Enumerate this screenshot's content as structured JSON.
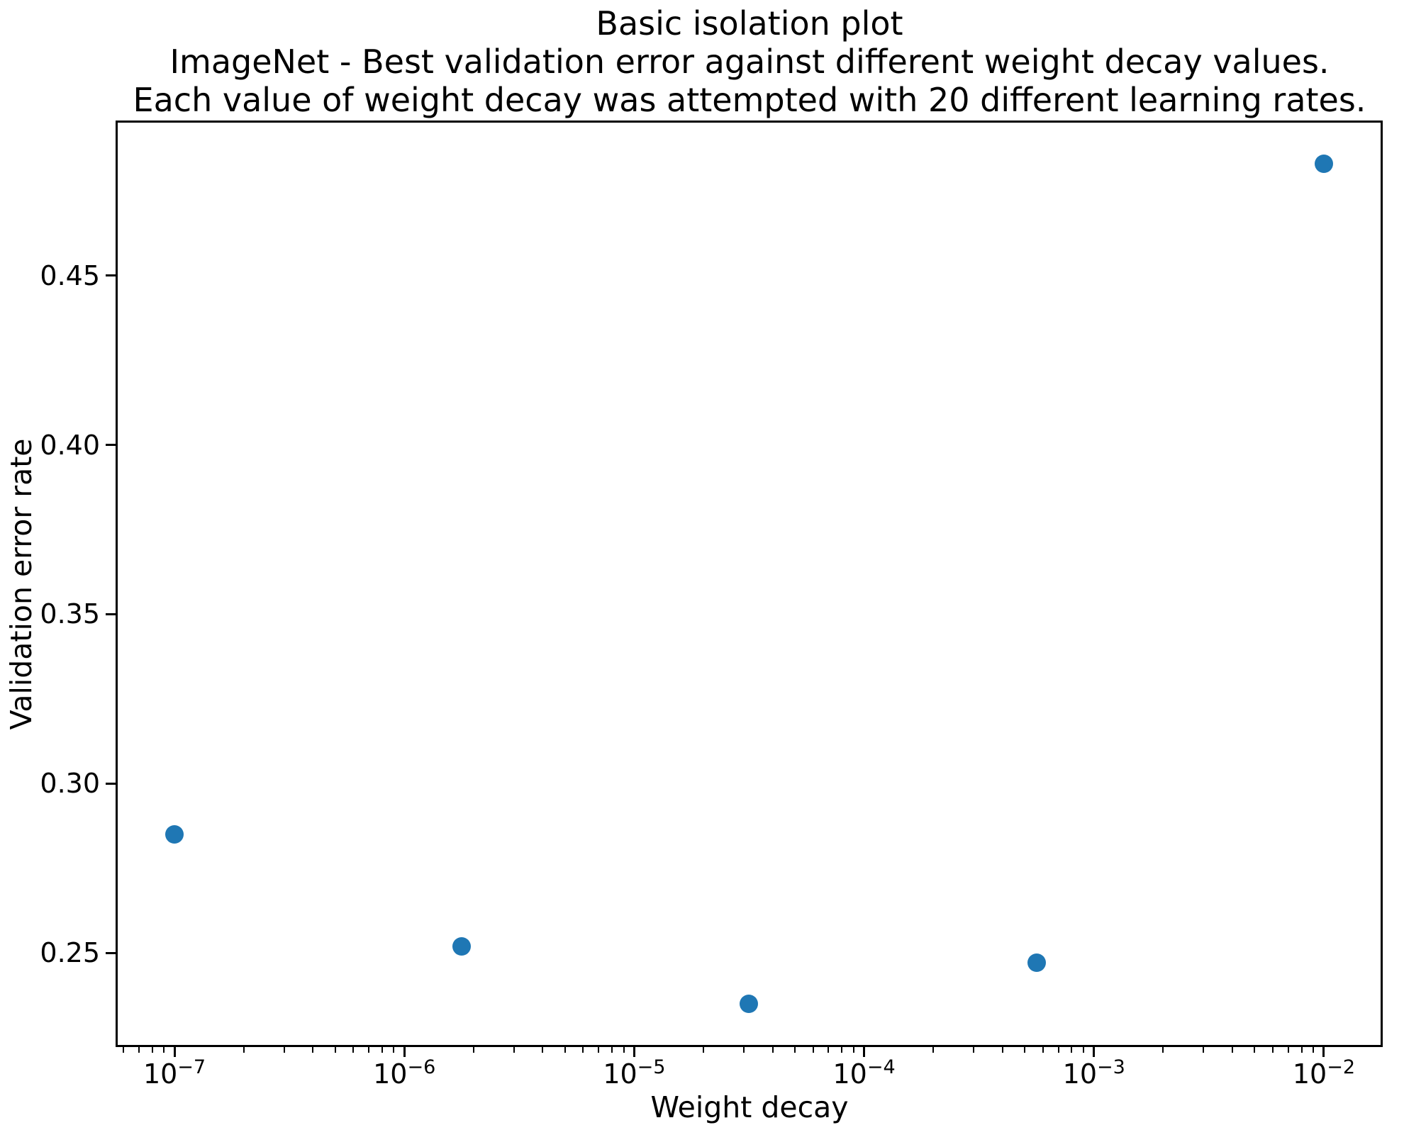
{
  "chart_data": {
    "type": "scatter",
    "title_lines": [
      "Basic isolation plot",
      "ImageNet - Best validation error against different weight decay values.",
      "Each value of weight decay was attempted with 20 different learning rates."
    ],
    "xlabel": "Weight decay",
    "ylabel": "Validation error rate",
    "x_scale": "log",
    "xlim_log10": [
      -7.25,
      -1.75
    ],
    "ylim": [
      0.2226,
      0.4954
    ],
    "x_major_ticks_log10": [
      -7,
      -6,
      -5,
      -4,
      -3,
      -2
    ],
    "y_ticks": [
      0.25,
      0.3,
      0.35,
      0.4,
      0.45
    ],
    "points": [
      {
        "x": 1e-07,
        "y": 0.285
      },
      {
        "x": 1.78e-06,
        "y": 0.252
      },
      {
        "x": 3.16e-05,
        "y": 0.235
      },
      {
        "x": 0.000562,
        "y": 0.247
      },
      {
        "x": 0.01,
        "y": 0.483
      }
    ],
    "marker_color": "#1f77b4",
    "axis_color": "#000000",
    "background_color": "#ffffff",
    "grid": false,
    "legend": null
  }
}
